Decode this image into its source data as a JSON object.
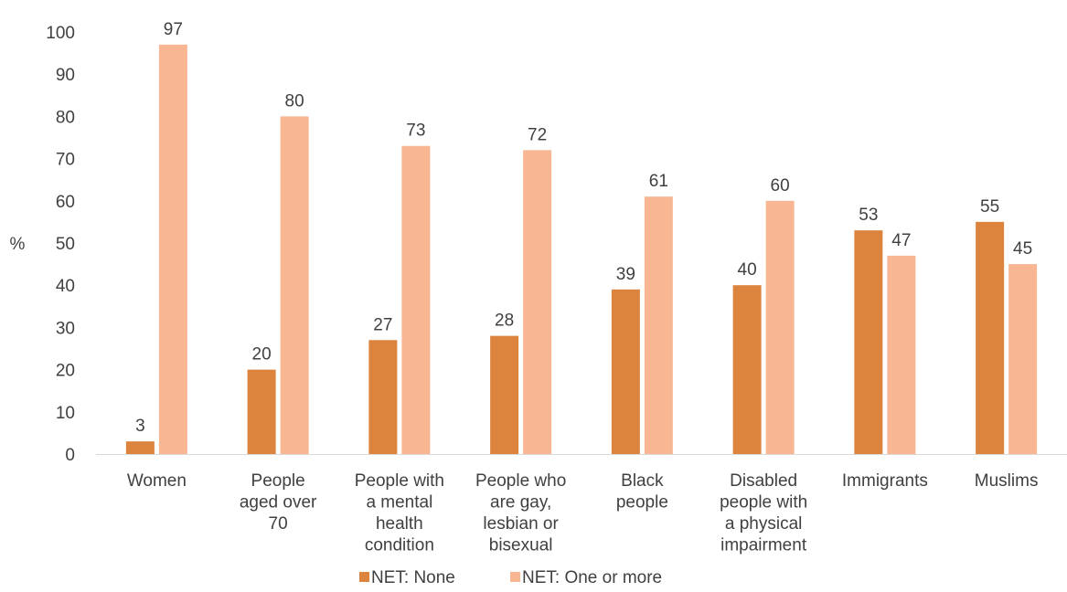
{
  "chart_data": {
    "type": "bar",
    "title": "",
    "xlabel": "",
    "ylabel": "%",
    "ylim": [
      0,
      100
    ],
    "yticks": [
      0,
      10,
      20,
      30,
      40,
      50,
      60,
      70,
      80,
      90,
      100
    ],
    "grid": false,
    "legend_position": "bottom",
    "categories": [
      "Women",
      "People aged over 70",
      "People with a mental health condition",
      "People who are gay, lesbian or bisexual",
      "Black people",
      "Disabled people with a physical impairment",
      "Immigrants",
      "Muslims"
    ],
    "category_lines": [
      [
        "Women"
      ],
      [
        "People",
        "aged over",
        "70"
      ],
      [
        "People with",
        "a mental",
        "health",
        "condition"
      ],
      [
        "People who",
        "are gay,",
        "lesbian or",
        "bisexual"
      ],
      [
        "Black",
        "people"
      ],
      [
        "Disabled",
        "people with",
        "a physical",
        "impairment"
      ],
      [
        "Immigrants"
      ],
      [
        "Muslims"
      ]
    ],
    "series": [
      {
        "name": "NET: None",
        "color": "#DC843E",
        "values": [
          3,
          20,
          27,
          28,
          39,
          40,
          53,
          55
        ]
      },
      {
        "name": "NET: One or more",
        "color": "#F8B693",
        "values": [
          97,
          80,
          73,
          72,
          61,
          60,
          47,
          45
        ]
      }
    ]
  }
}
